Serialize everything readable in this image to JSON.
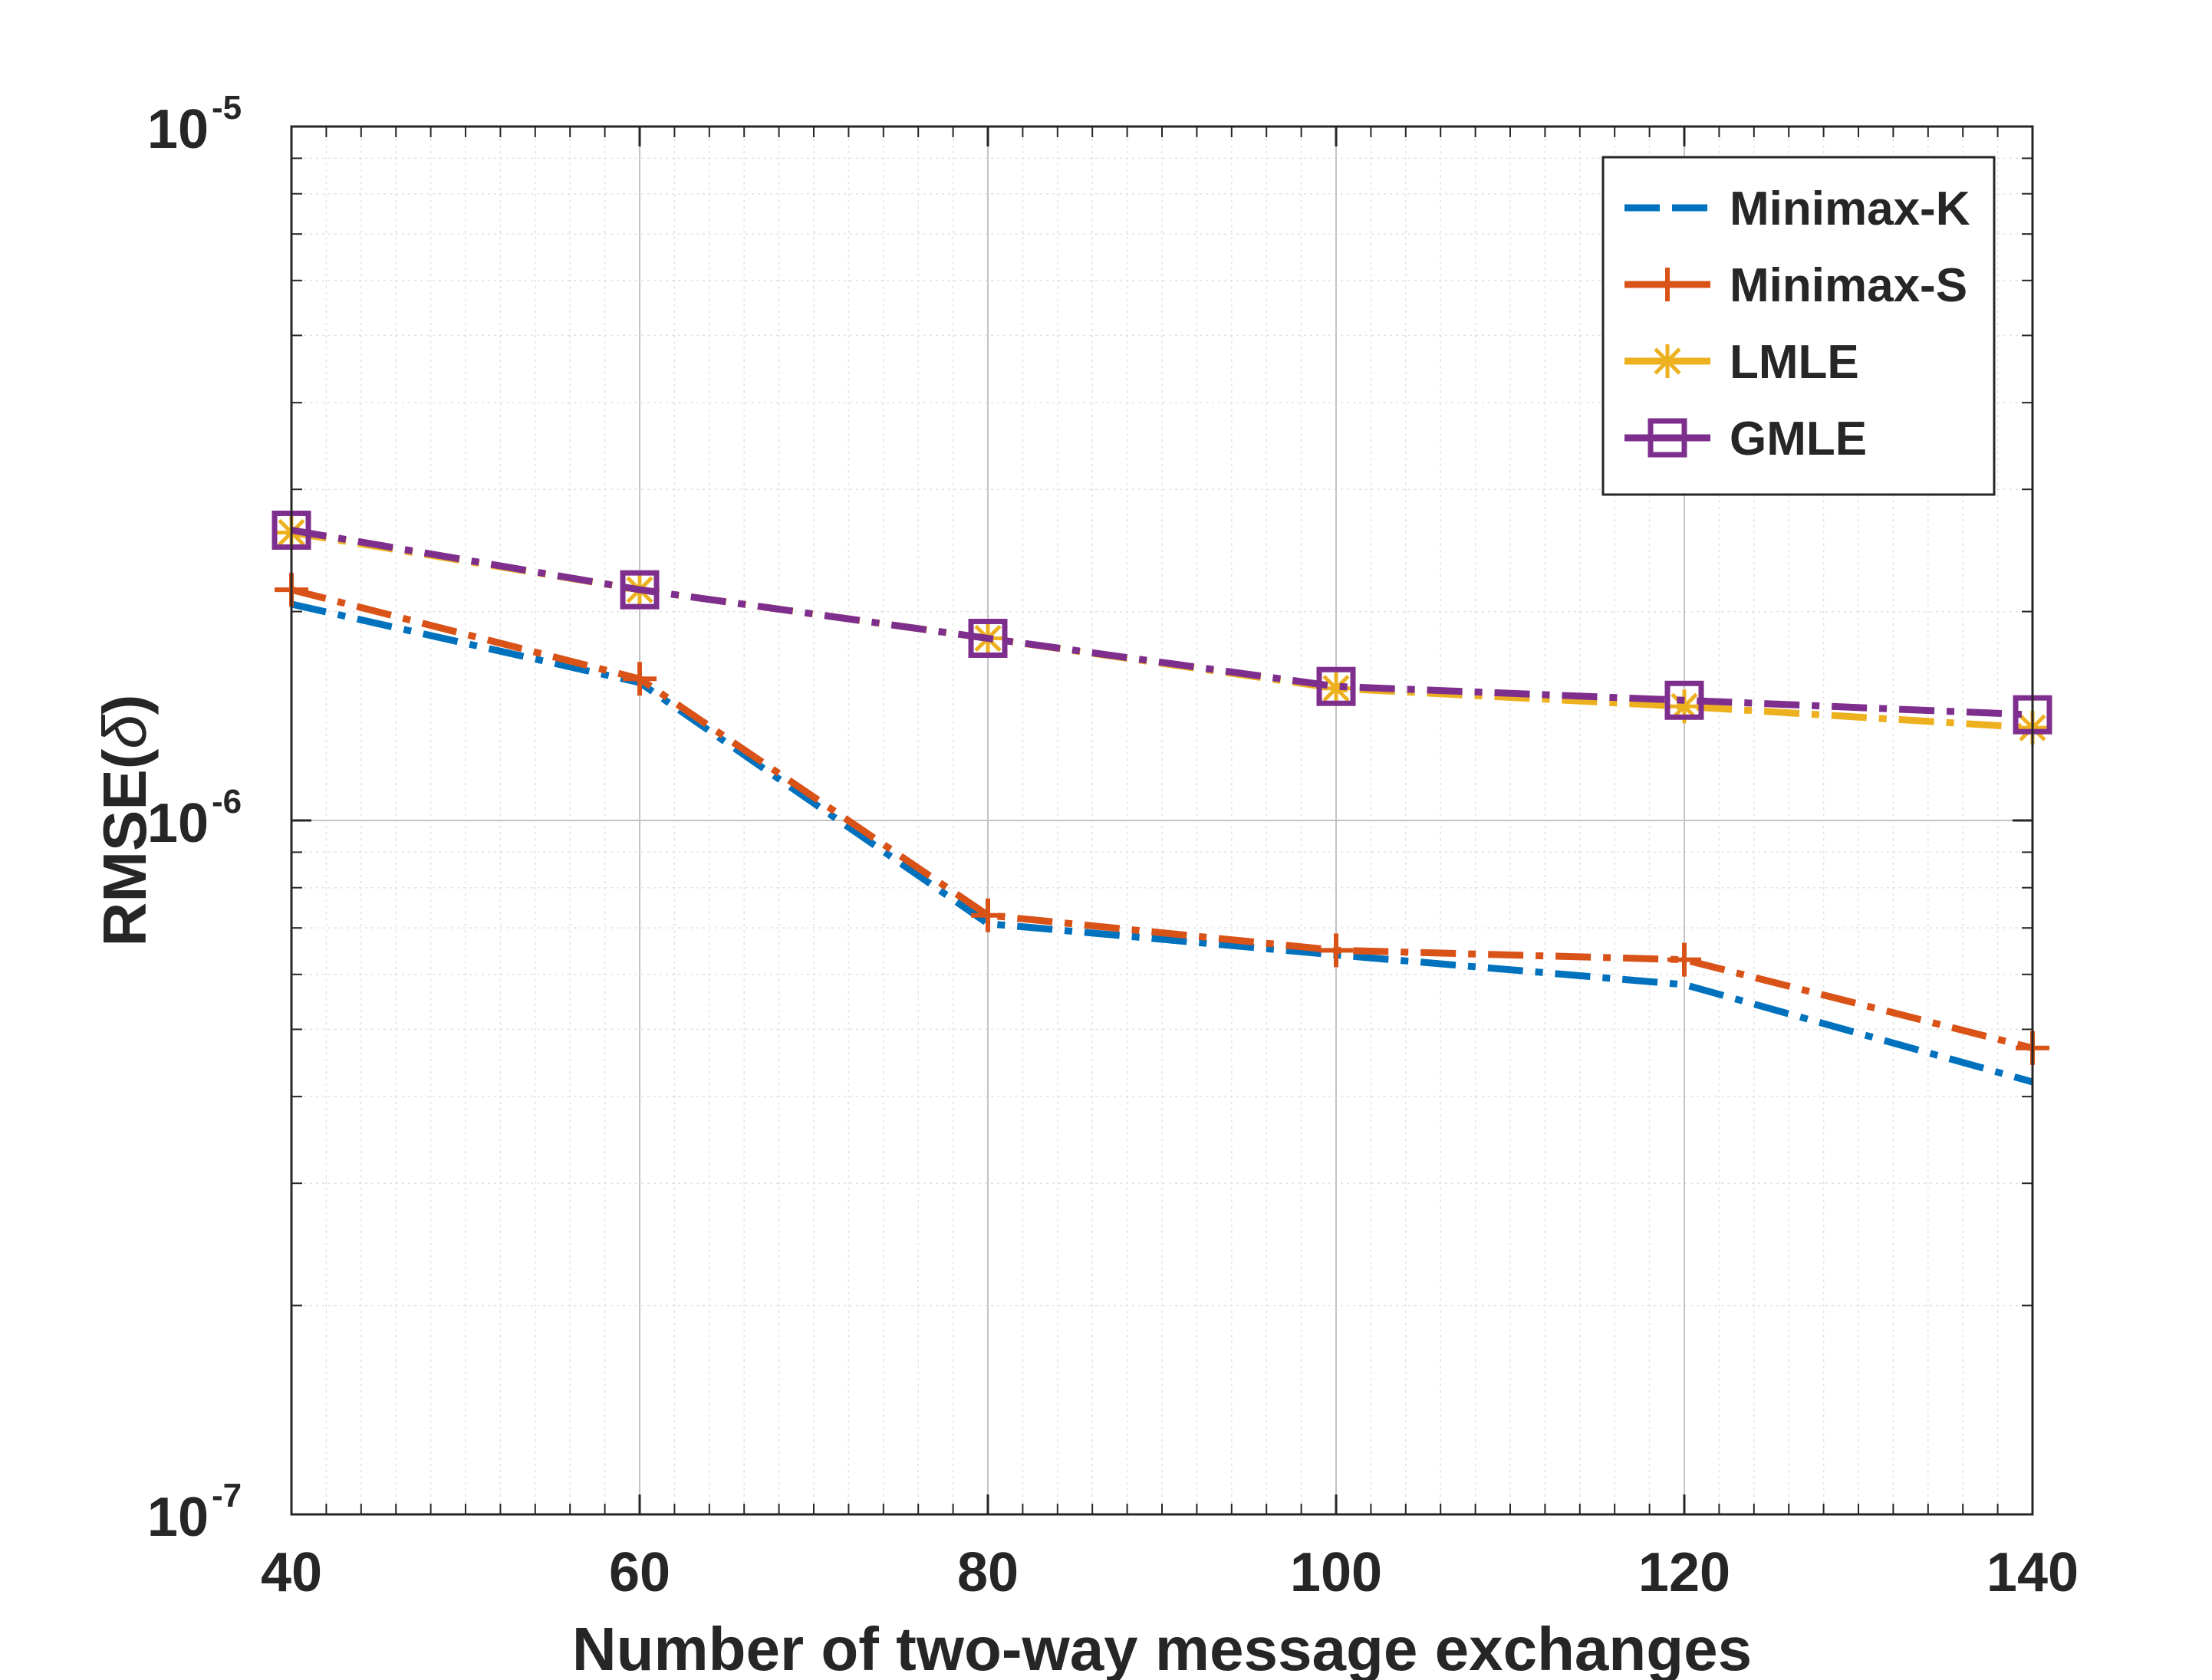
{
  "chart_data": {
    "type": "line",
    "title": "",
    "xlabel": "Number of two-way message exchanges",
    "ylabel": "RMSE(",
    "ylabel_symbol": "δ",
    "ylabel_close": ")",
    "yscale": "log",
    "xlim": [
      40,
      140
    ],
    "ylim": [
      1e-07,
      1e-05
    ],
    "grid": true,
    "legend_position": "top-right",
    "x": [
      40,
      60,
      80,
      100,
      120,
      140
    ],
    "x_tick_labels": [
      "40",
      "60",
      "80",
      "100",
      "120",
      "140"
    ],
    "y_ticks": [
      {
        "value": 1e-07,
        "base": "10",
        "exp": "-7"
      },
      {
        "value": 1e-06,
        "base": "10",
        "exp": "-6"
      },
      {
        "value": 1e-05,
        "base": "10",
        "exp": "-5"
      }
    ],
    "series": [
      {
        "name": "Minimax-K",
        "color": "#0072BD",
        "dash": "dashdot",
        "marker": "none",
        "values": [
          2.05e-06,
          1.58e-06,
          7.1e-07,
          6.4e-07,
          5.8e-07,
          4.2e-07
        ]
      },
      {
        "name": "Minimax-S",
        "color": "#D95319",
        "dash": "dashdot",
        "marker": "plus",
        "values": [
          2.15e-06,
          1.6e-06,
          7.3e-07,
          6.5e-07,
          6.3e-07,
          4.7e-07
        ]
      },
      {
        "name": "LMLE",
        "color": "#EDB120",
        "dash": "dashdot",
        "marker": "asterisk",
        "values": [
          2.6e-06,
          2.15e-06,
          1.83e-06,
          1.55e-06,
          1.46e-06,
          1.36e-06
        ]
      },
      {
        "name": "GMLE",
        "color": "#7E2F8E",
        "dash": "dashdot",
        "marker": "square",
        "values": [
          2.62e-06,
          2.15e-06,
          1.83e-06,
          1.56e-06,
          1.49e-06,
          1.42e-06
        ]
      }
    ]
  }
}
